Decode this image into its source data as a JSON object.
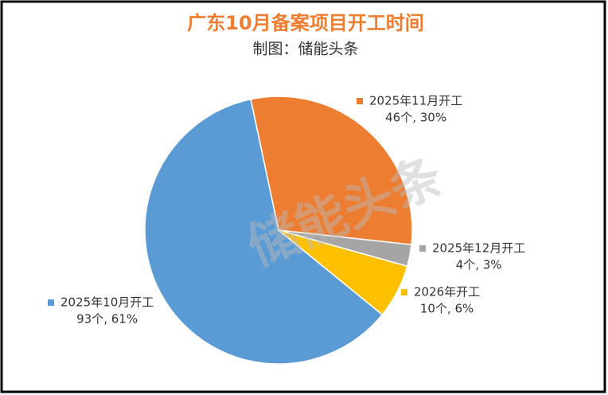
{
  "chart_data": {
    "type": "pie",
    "title": "广东10月备案项目开工时间",
    "subtitle": "制图：储能头条",
    "watermark": "储能头条",
    "categories": [
      "2025年11月开工",
      "2025年12月开工",
      "2026年开工",
      "2025年10月开工"
    ],
    "values": [
      46,
      4,
      10,
      93
    ],
    "value_labels": [
      "46个, 30%",
      "4个, 3%",
      "10个, 6%",
      "93个, 61%"
    ],
    "colors": [
      "#ED7D31",
      "#A5A5A5",
      "#FFC000",
      "#5B9BD5"
    ]
  }
}
